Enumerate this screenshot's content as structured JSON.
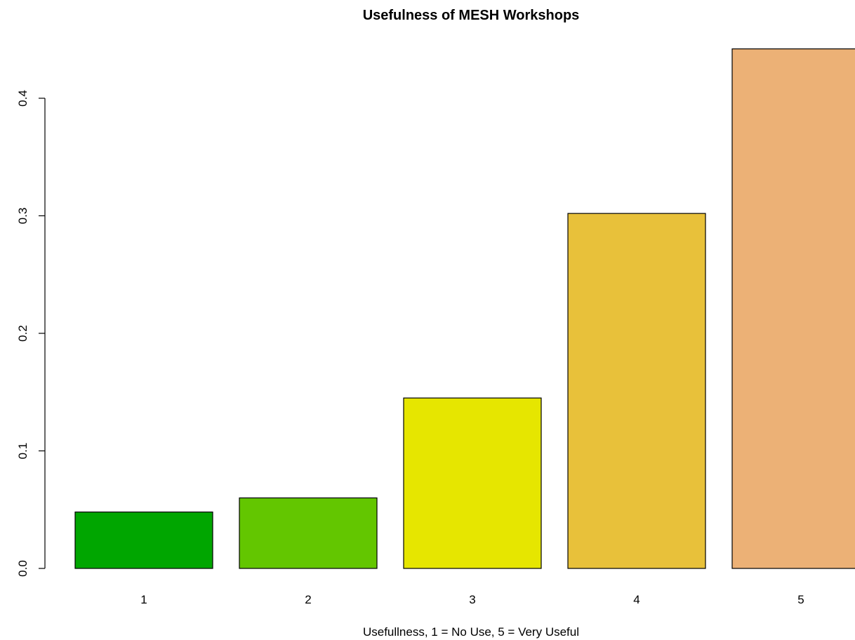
{
  "chart_data": {
    "type": "bar",
    "title": "Usefulness of MESH Workshops",
    "xlabel": "Usefullness, 1 = No Use, 5 = Very Useful",
    "ylabel": "",
    "categories": [
      "1",
      "2",
      "3",
      "4",
      "5"
    ],
    "values": [
      0.048,
      0.06,
      0.145,
      0.302,
      0.442
    ],
    "colors": [
      "#00A600",
      "#63C600",
      "#E6E600",
      "#E8C13A",
      "#ECB176"
    ],
    "ylim": [
      0,
      0.44
    ],
    "yticks": [
      0.0,
      0.1,
      0.2,
      0.3,
      0.4
    ],
    "ytick_labels": [
      "0.0",
      "0.1",
      "0.2",
      "0.3",
      "0.4"
    ],
    "grid": false,
    "legend": "none"
  }
}
